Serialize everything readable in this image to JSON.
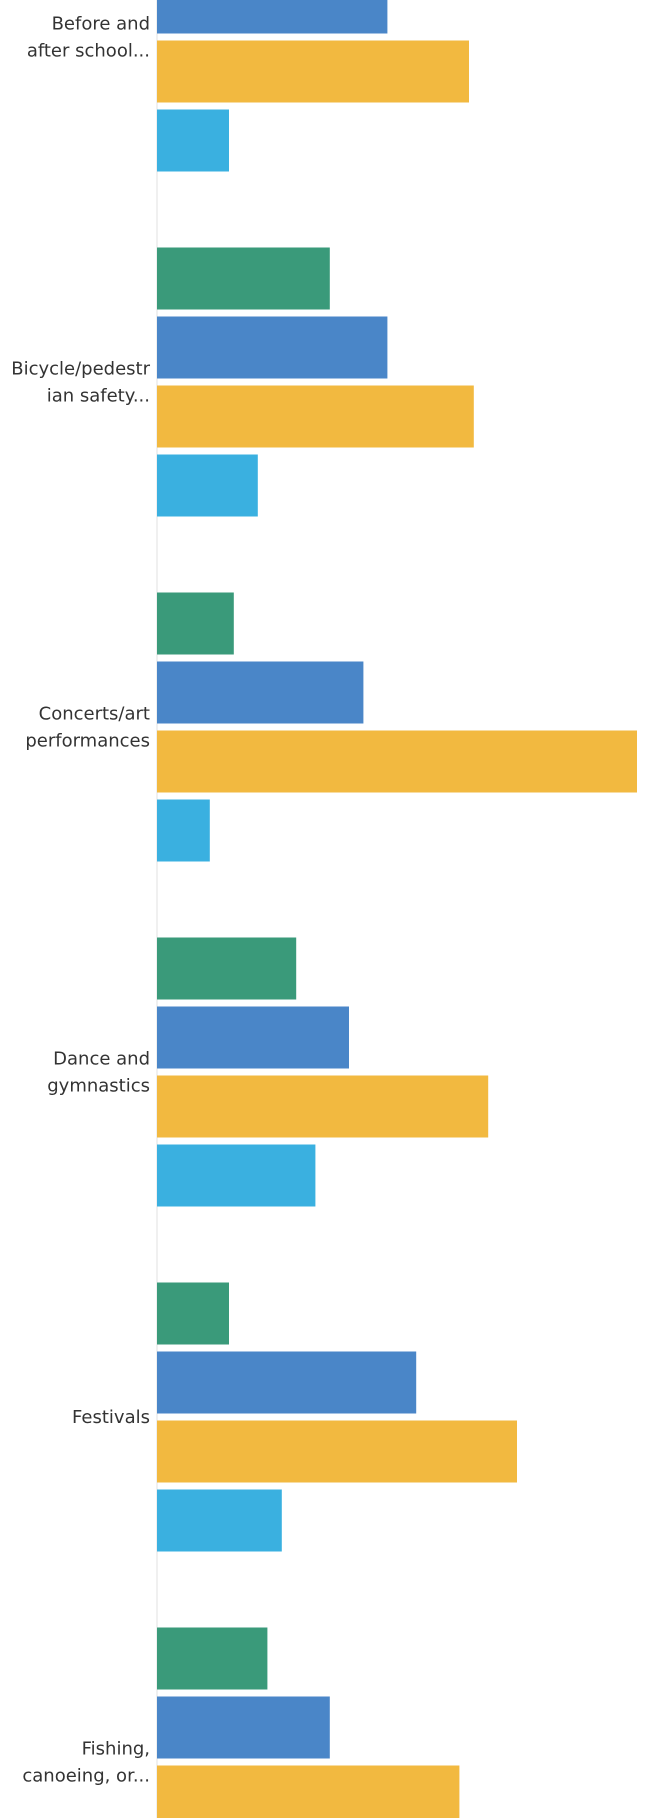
{
  "chart_data": {
    "type": "bar",
    "orientation": "horizontal",
    "title": "",
    "xlabel": "",
    "ylabel": "",
    "grid": false,
    "legend": "none",
    "categories": [
      "Before and after school...",
      "Bicycle/pedestrian safety...",
      "Concerts/art performances",
      "Dance and gymnastics",
      "Festivals",
      "Fishing, canoeing, or..."
    ],
    "category_label_lines": [
      [
        "Before and",
        "after school..."
      ],
      [
        "Bicycle/pedestr",
        "ian safety..."
      ],
      [
        "Concerts/art",
        "performances"
      ],
      [
        "Dance and",
        "gymnastics"
      ],
      [
        "Festivals"
      ],
      [
        "Fishing,",
        "canoeing, or..."
      ]
    ],
    "series": [
      {
        "color": "#3a9a7a",
        "values": [
          null,
          36,
          16,
          29,
          15,
          23
        ]
      },
      {
        "color": "#4a86c8",
        "values": [
          48,
          48,
          43,
          40,
          54,
          36
        ]
      },
      {
        "color": "#f2b940",
        "values": [
          65,
          66,
          100,
          69,
          75,
          63
        ]
      },
      {
        "color": "#3ab0e0",
        "values": [
          15,
          21,
          11,
          33,
          26,
          null
        ]
      }
    ],
    "xlim": [
      0,
      100
    ]
  }
}
